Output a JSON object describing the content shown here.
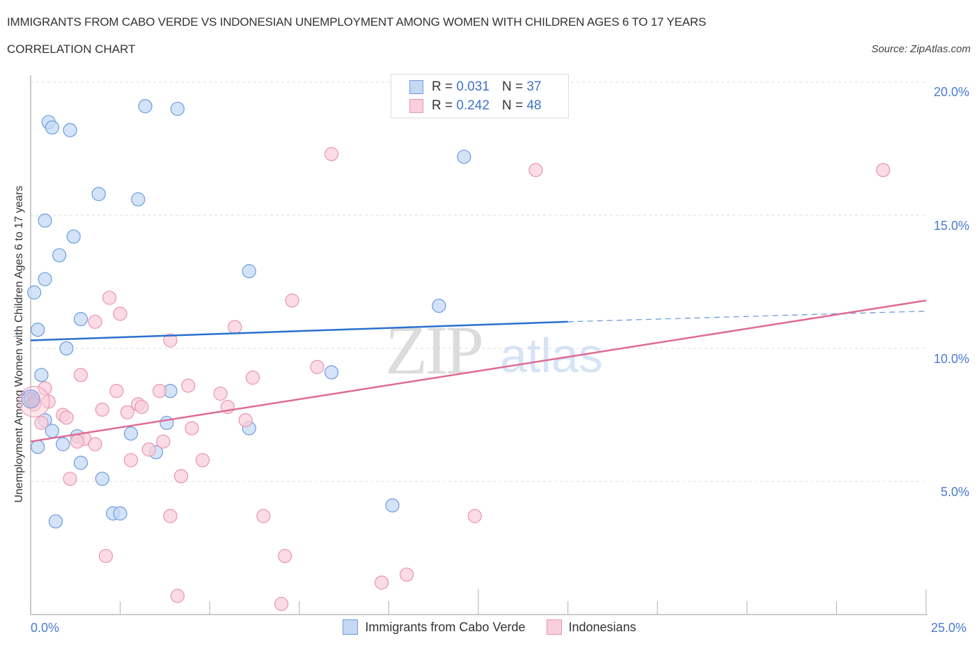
{
  "header": {
    "title": "IMMIGRANTS FROM CABO VERDE VS INDONESIAN UNEMPLOYMENT AMONG WOMEN WITH CHILDREN AGES 6 TO 17 YEARS",
    "subtitle": "CORRELATION CHART",
    "source": "Source: ZipAtlas.com"
  },
  "watermark": {
    "zip": "ZIP",
    "atlas": "atlas"
  },
  "legend_top": {
    "rows": [
      {
        "r_label": "R = ",
        "r_value": "0.031",
        "n_label": "N = ",
        "n_value": "37"
      },
      {
        "r_label": "R = ",
        "r_value": "0.242",
        "n_label": "N = ",
        "n_value": "48"
      }
    ]
  },
  "legend_bottom": {
    "items": [
      {
        "label": "Immigrants from Cabo Verde"
      },
      {
        "label": "Indonesians"
      }
    ]
  },
  "axes": {
    "ylabel": "Unemployment Among Women with Children Ages 6 to 17 years",
    "yticks": [
      "20.0%",
      "15.0%",
      "10.0%",
      "5.0%"
    ],
    "xticks": [
      "0.0%",
      "25.0%"
    ]
  },
  "colors": {
    "blue_fill": "#c5d9f5",
    "blue_stroke": "#6a9be0",
    "blue_line": "#2a6fd0",
    "pink_fill": "#f9cfdc",
    "pink_stroke": "#e895b0",
    "pink_line": "#e06a94",
    "tick_text": "#4a7bd0"
  },
  "chart_data": {
    "type": "scatter",
    "title": "IMMIGRANTS FROM CABO VERDE VS INDONESIAN UNEMPLOYMENT AMONG WOMEN WITH CHILDREN AGES 6 TO 17 YEARS",
    "subtitle": "CORRELATION CHART",
    "xlabel": "",
    "ylabel": "Unemployment Among Women with Children Ages 6 to 17 years",
    "xlim": [
      0,
      25
    ],
    "ylim": [
      0,
      20
    ],
    "x_tick_labels": [
      "0.0%",
      "25.0%"
    ],
    "y_tick_labels": [
      "5.0%",
      "10.0%",
      "15.0%",
      "20.0%"
    ],
    "grid": true,
    "legend_position": "bottom",
    "series": [
      {
        "name": "Immigrants from Cabo Verde",
        "R": 0.031,
        "N": 37,
        "trend": {
          "x0": 0,
          "y0": 10.3,
          "x1": 15,
          "y1": 11.0,
          "dashed_to_x": 25,
          "dashed_to_y": 11.4
        },
        "points": [
          [
            3.2,
            19.1
          ],
          [
            4.1,
            19.0
          ],
          [
            0.5,
            18.5
          ],
          [
            0.6,
            18.3
          ],
          [
            1.1,
            18.2
          ],
          [
            12.1,
            17.2
          ],
          [
            1.9,
            15.8
          ],
          [
            3.0,
            15.6
          ],
          [
            0.4,
            14.8
          ],
          [
            1.2,
            14.2
          ],
          [
            0.8,
            13.5
          ],
          [
            6.1,
            12.9
          ],
          [
            0.4,
            12.6
          ],
          [
            0.1,
            12.1
          ],
          [
            11.4,
            11.6
          ],
          [
            1.4,
            11.1
          ],
          [
            0.2,
            10.7
          ],
          [
            1.0,
            10.0
          ],
          [
            8.4,
            9.1
          ],
          [
            0.3,
            9.0
          ],
          [
            3.9,
            8.4
          ],
          [
            0.0,
            8.1
          ],
          [
            0.4,
            7.3
          ],
          [
            3.8,
            7.2
          ],
          [
            6.1,
            7.0
          ],
          [
            0.6,
            6.9
          ],
          [
            2.8,
            6.8
          ],
          [
            1.3,
            6.7
          ],
          [
            0.9,
            6.4
          ],
          [
            0.2,
            6.3
          ],
          [
            3.5,
            6.1
          ],
          [
            1.4,
            5.7
          ],
          [
            2.0,
            5.1
          ],
          [
            10.1,
            4.1
          ],
          [
            2.3,
            3.8
          ],
          [
            2.5,
            3.8
          ],
          [
            0.7,
            3.5
          ]
        ]
      },
      {
        "name": "Indonesians",
        "R": 0.242,
        "N": 48,
        "trend": {
          "x0": 0,
          "y0": 6.5,
          "x1": 25,
          "y1": 11.8
        },
        "points": [
          [
            8.4,
            17.3
          ],
          [
            14.1,
            16.7
          ],
          [
            23.8,
            16.7
          ],
          [
            2.2,
            11.9
          ],
          [
            7.3,
            11.8
          ],
          [
            2.5,
            11.3
          ],
          [
            1.8,
            11.0
          ],
          [
            5.7,
            10.8
          ],
          [
            3.9,
            10.3
          ],
          [
            8.0,
            9.3
          ],
          [
            1.4,
            9.0
          ],
          [
            6.2,
            8.9
          ],
          [
            4.4,
            8.6
          ],
          [
            0.4,
            8.5
          ],
          [
            2.4,
            8.4
          ],
          [
            3.6,
            8.4
          ],
          [
            5.3,
            8.3
          ],
          [
            0.1,
            8.0
          ],
          [
            0.5,
            8.0
          ],
          [
            3.0,
            7.9
          ],
          [
            3.1,
            7.8
          ],
          [
            5.5,
            7.8
          ],
          [
            2.0,
            7.7
          ],
          [
            2.7,
            7.6
          ],
          [
            0.9,
            7.5
          ],
          [
            1.0,
            7.4
          ],
          [
            6.0,
            7.3
          ],
          [
            0.3,
            7.2
          ],
          [
            4.5,
            7.0
          ],
          [
            1.5,
            6.6
          ],
          [
            3.7,
            6.5
          ],
          [
            1.3,
            6.5
          ],
          [
            1.8,
            6.4
          ],
          [
            3.3,
            6.2
          ],
          [
            2.8,
            5.8
          ],
          [
            4.8,
            5.8
          ],
          [
            4.2,
            5.2
          ],
          [
            1.1,
            5.1
          ],
          [
            3.9,
            3.7
          ],
          [
            6.5,
            3.7
          ],
          [
            12.4,
            3.7
          ],
          [
            2.1,
            2.2
          ],
          [
            7.1,
            2.2
          ],
          [
            9.8,
            1.2
          ],
          [
            10.5,
            1.5
          ],
          [
            4.1,
            0.7
          ],
          [
            7.0,
            0.4
          ],
          [
            0.1,
            7.9
          ]
        ]
      }
    ]
  }
}
